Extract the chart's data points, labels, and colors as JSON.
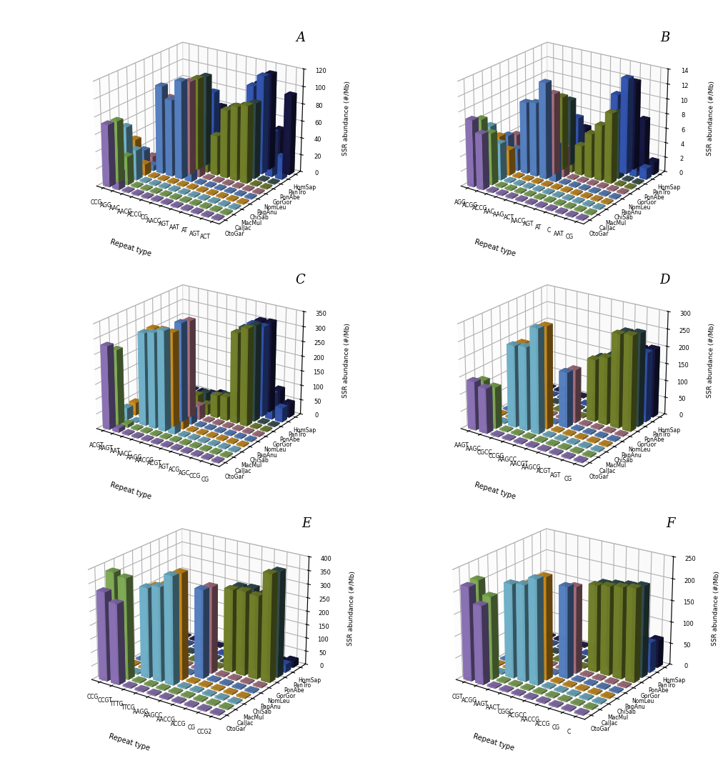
{
  "panel_labels": [
    "A",
    "B",
    "C",
    "D",
    "E",
    "F"
  ],
  "species_labels": [
    "OtoGar",
    "CalJac",
    "MacMul",
    "ChiSab",
    "PapAnu",
    "NomLeu",
    "GorGor",
    "PonAbe",
    "PanTro",
    "HomSap"
  ],
  "species_colors": [
    "#9B7FCC",
    "#90C060",
    "#7EC8E3",
    "#E8A020",
    "#6090D8",
    "#C08090",
    "#809030",
    "#3A5858",
    "#3A60C8",
    "#18184A"
  ],
  "panels": {
    "A": {
      "zlim": 120,
      "zticks": [
        0,
        20,
        40,
        60,
        80,
        100,
        120
      ],
      "repeat_labels": [
        "CCG",
        "AGG",
        "AAC",
        "AACG",
        "ACCG",
        "CG",
        "AACC",
        "AGT",
        "AAT",
        "AT",
        "AGT",
        "ACT"
      ],
      "values": [
        [
          72,
          71,
          59,
          39,
          21,
          8,
          5,
          3,
          2,
          1
        ],
        [
          20,
          33,
          35,
          13,
          6,
          2,
          1,
          0,
          0,
          0
        ],
        [
          0,
          0,
          0,
          0,
          102,
          84,
          21,
          18,
          12,
          8
        ],
        [
          0,
          0,
          0,
          0,
          89,
          82,
          80,
          65,
          46,
          28
        ],
        [
          0,
          0,
          0,
          0,
          113,
          108,
          107,
          105,
          82,
          60
        ],
        [
          0,
          0,
          0,
          0,
          20,
          19,
          18,
          15,
          10,
          7
        ],
        [
          0,
          0,
          0,
          0,
          0,
          0,
          46,
          44,
          28,
          19
        ],
        [
          0,
          0,
          0,
          0,
          0,
          0,
          79,
          78,
          55,
          31
        ],
        [
          0,
          0,
          0,
          0,
          0,
          0,
          86,
          82,
          100,
          99
        ],
        [
          0,
          0,
          0,
          0,
          0,
          0,
          90,
          88,
          114,
          112
        ],
        [
          0,
          0,
          0,
          0,
          0,
          0,
          0,
          0,
          52,
          50
        ],
        [
          0,
          0,
          0,
          0,
          0,
          0,
          0,
          0,
          26,
          93
        ]
      ]
    },
    "B": {
      "zlim": 14,
      "zticks": [
        0,
        2,
        4,
        6,
        8,
        10,
        12,
        14
      ],
      "repeat_labels": [
        "AGG",
        "ACGG",
        "ACCG",
        "AAC",
        "AAG",
        "ACT",
        "AACC",
        "AGT",
        "AT",
        "C",
        "AAT",
        "CG"
      ],
      "values": [
        [
          9.0,
          8.5,
          7.0,
          5.0,
          4.5,
          4.0,
          1.5,
          1.0,
          0.5,
          0.2
        ],
        [
          7.5,
          7.0,
          5.0,
          3.5,
          3.0,
          2.5,
          1.0,
          0.5,
          0.2,
          0.1
        ],
        [
          0.0,
          0.0,
          0.0,
          0.0,
          9.7,
          8.0,
          4.5,
          3.0,
          1.5,
          1.0
        ],
        [
          0.0,
          0.0,
          0.0,
          0.0,
          10.0,
          9.0,
          8.0,
          6.0,
          3.0,
          2.0
        ],
        [
          0.0,
          0.0,
          0.0,
          0.0,
          13.0,
          11.0,
          10.0,
          9.0,
          6.0,
          4.0
        ],
        [
          0.0,
          0.0,
          0.0,
          0.0,
          5.0,
          4.0,
          3.0,
          2.0,
          1.5,
          1.0
        ],
        [
          0.0,
          0.0,
          0.0,
          0.0,
          0.0,
          0.0,
          4.0,
          3.5,
          2.0,
          1.5
        ],
        [
          0.0,
          0.0,
          0.0,
          0.0,
          0.0,
          0.0,
          6.0,
          5.5,
          3.5,
          2.5
        ],
        [
          0.0,
          0.0,
          0.0,
          0.0,
          0.0,
          0.0,
          7.5,
          7.0,
          10.5,
          10.0
        ],
        [
          0.0,
          0.0,
          0.0,
          0.0,
          0.0,
          0.0,
          9.5,
          9.0,
          13.0,
          12.0
        ],
        [
          0.0,
          0.0,
          0.0,
          0.0,
          0.0,
          0.0,
          0.0,
          0.0,
          3.5,
          7.2
        ],
        [
          0.0,
          0.0,
          0.0,
          0.0,
          0.0,
          0.0,
          0.0,
          0.0,
          1.5,
          1.8
        ]
      ]
    },
    "C": {
      "zlim": 350,
      "zticks": [
        0,
        50,
        100,
        150,
        200,
        250,
        300,
        350
      ],
      "repeat_labels": [
        "ACGT",
        "AAGT",
        "AAT",
        "AACC",
        "AAGG",
        "AACCG",
        "ACGT",
        "AGT",
        "ACG",
        "AGC",
        "CCG",
        "CG"
      ],
      "values": [
        [
          280,
          253,
          40,
          43,
          8,
          6,
          3,
          2,
          1,
          0.5
        ],
        [
          14,
          11,
          3,
          5,
          1,
          0.5,
          0.2,
          0.1,
          0.05,
          0.02
        ],
        [
          0,
          0,
          311,
          312,
          45,
          40,
          20,
          15,
          8,
          5
        ],
        [
          0,
          0,
          320,
          316,
          50,
          46,
          24,
          19,
          12,
          8
        ],
        [
          0,
          0,
          335,
          315,
          333,
          327,
          59,
          50,
          26,
          18
        ],
        [
          0,
          0,
          52,
          56,
          50,
          47,
          35,
          28,
          22,
          16
        ],
        [
          0,
          0,
          0,
          0,
          0,
          0,
          76,
          62,
          45,
          30
        ],
        [
          0,
          0,
          0,
          0,
          0,
          0,
          80,
          70,
          51,
          38
        ],
        [
          0,
          0,
          0,
          0,
          0,
          0,
          305,
          308,
          308,
          305
        ],
        [
          0,
          0,
          0,
          0,
          0,
          0,
          328,
          325,
          307,
          308
        ],
        [
          0,
          0,
          0,
          0,
          0,
          0,
          0,
          0,
          87,
          86
        ],
        [
          0,
          0,
          0,
          0,
          0,
          0,
          0,
          0,
          48,
          48
        ]
      ]
    },
    "D": {
      "zlim": 300,
      "zticks": [
        0,
        50,
        100,
        150,
        200,
        250,
        300
      ],
      "repeat_labels": [
        "AAGT",
        "AAGC",
        "CGCC",
        "CCGG",
        "AAGCC",
        "AACGT",
        "AAGCG",
        "ACGT",
        "AGT",
        "CG"
      ],
      "values": [
        [
          140,
          130,
          0,
          0,
          0,
          0,
          0,
          0,
          0,
          0
        ],
        [
          130,
          120,
          0,
          0,
          0,
          0,
          0,
          0,
          0,
          0
        ],
        [
          0,
          0,
          235,
          230,
          0,
          0,
          0,
          0,
          0,
          0
        ],
        [
          0,
          0,
          240,
          235,
          0,
          0,
          0,
          0,
          0,
          0
        ],
        [
          0,
          0,
          300,
          295,
          0,
          0,
          0,
          0,
          0,
          0
        ],
        [
          0,
          0,
          0,
          0,
          160,
          155,
          0,
          0,
          0,
          0
        ],
        [
          0,
          0,
          0,
          0,
          0,
          0,
          180,
          175,
          45,
          40
        ],
        [
          0,
          0,
          0,
          0,
          0,
          0,
          195,
          190,
          50,
          45
        ],
        [
          0,
          0,
          0,
          0,
          0,
          0,
          270,
          265,
          200,
          195
        ],
        [
          0,
          0,
          0,
          0,
          0,
          0,
          275,
          270,
          202,
          200
        ]
      ]
    },
    "E": {
      "zlim": 400,
      "zticks": [
        0,
        50,
        100,
        150,
        200,
        250,
        300,
        350,
        400
      ],
      "repeat_labels": [
        "CCG",
        "CCGT",
        "TTTG",
        "TTCG",
        "AAGG",
        "AAGCC",
        "AACCG",
        "ACCG",
        "CG",
        "CCG2"
      ],
      "values": [
        [
          325,
          380,
          0,
          0,
          0,
          0,
          0,
          0,
          0,
          0
        ],
        [
          295,
          370,
          0,
          0,
          0,
          0,
          0,
          0,
          0,
          0
        ],
        [
          0,
          0,
          330,
          320,
          0,
          0,
          0,
          0,
          0,
          0
        ],
        [
          0,
          0,
          345,
          340,
          0,
          0,
          0,
          0,
          0,
          0
        ],
        [
          0,
          0,
          395,
          390,
          0,
          0,
          0,
          0,
          0,
          0
        ],
        [
          0,
          0,
          0,
          0,
          325,
          320,
          0,
          0,
          0,
          0
        ],
        [
          0,
          0,
          0,
          0,
          0,
          0,
          305,
          300,
          50,
          45
        ],
        [
          0,
          0,
          0,
          0,
          0,
          0,
          310,
          305,
          55,
          50
        ],
        [
          0,
          0,
          0,
          0,
          0,
          0,
          305,
          295,
          20,
          15
        ],
        [
          0,
          0,
          0,
          0,
          0,
          0,
          395,
          388,
          30,
          25
        ]
      ]
    },
    "F": {
      "zlim": 250,
      "zticks": [
        0,
        50,
        100,
        150,
        200,
        250
      ],
      "repeat_labels": [
        "CGT",
        "ACGG",
        "AAGT",
        "AACT",
        "CGGC",
        "ACGCC",
        "AACCG",
        "ACCG",
        "CG",
        "C"
      ],
      "values": [
        [
          215,
          220,
          0,
          0,
          0,
          0,
          0,
          0,
          0,
          0
        ],
        [
          180,
          190,
          0,
          0,
          0,
          0,
          0,
          0,
          0,
          0
        ],
        [
          0,
          0,
          215,
          200,
          0,
          0,
          0,
          0,
          0,
          0
        ],
        [
          0,
          0,
          220,
          215,
          0,
          0,
          0,
          0,
          0,
          0
        ],
        [
          0,
          0,
          240,
          235,
          0,
          0,
          0,
          0,
          0,
          0
        ],
        [
          0,
          0,
          0,
          0,
          210,
          200,
          0,
          0,
          0,
          0
        ],
        [
          0,
          0,
          0,
          0,
          0,
          0,
          200,
          195,
          60,
          55
        ],
        [
          0,
          0,
          0,
          0,
          0,
          0,
          205,
          200,
          65,
          60
        ],
        [
          0,
          0,
          0,
          0,
          0,
          0,
          210,
          205,
          60,
          55
        ],
        [
          0,
          0,
          0,
          0,
          0,
          0,
          215,
          210,
          70,
          65
        ]
      ]
    }
  }
}
